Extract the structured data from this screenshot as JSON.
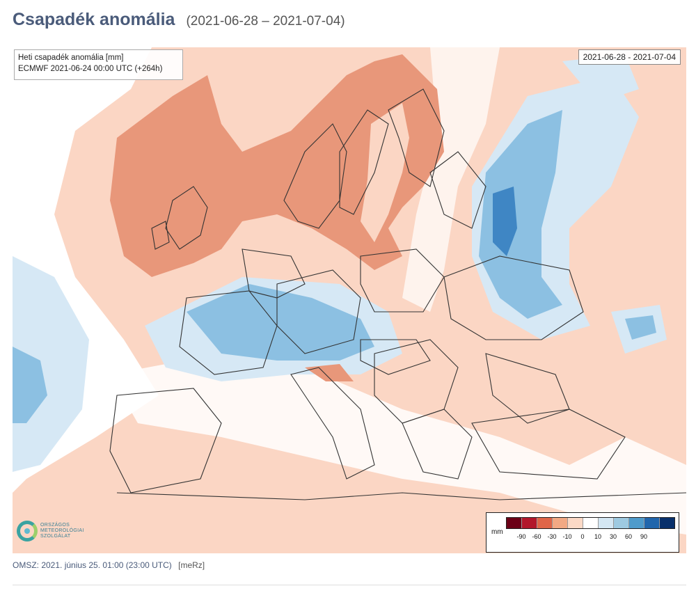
{
  "header": {
    "title": "Csapadék anomália",
    "subtitle": "(2021-06-28 – 2021-07-04)"
  },
  "map": {
    "info_line1": "Heti csapadék anomália [mm]",
    "info_line2": "ECMWF 2021-06-24 00:00 UTC (+264h)",
    "date_range": "2021-06-28 - 2021-07-04",
    "logo_lines": [
      "ORSZÁGOS",
      "METEOROLÓGIAI",
      "SZOLGÁLAT"
    ],
    "legend": {
      "unit": "mm",
      "colors": [
        "#6b0016",
        "#b2172b",
        "#df6548",
        "#f2a984",
        "#fbd9c6",
        "#ffffff",
        "#d4e7f3",
        "#9ecae1",
        "#4f9bcb",
        "#2166ac",
        "#08306b"
      ],
      "labels": [
        "-90",
        "-60",
        "-30",
        "-10",
        "0",
        "10",
        "30",
        "60",
        "90"
      ]
    },
    "palette": {
      "dry_strong": "#e8977a",
      "dry_light": "#fbd6c4",
      "neutral": "#ffffff",
      "wet_light": "#d6e8f5",
      "wet_mid": "#8cc0e2",
      "wet_strong": "#3f86c4",
      "border": "#333333"
    }
  },
  "footer": {
    "text": "OMSZ: 2021. június 25. 01:00 (23:00  UTC)",
    "tag": "[meRz]"
  }
}
